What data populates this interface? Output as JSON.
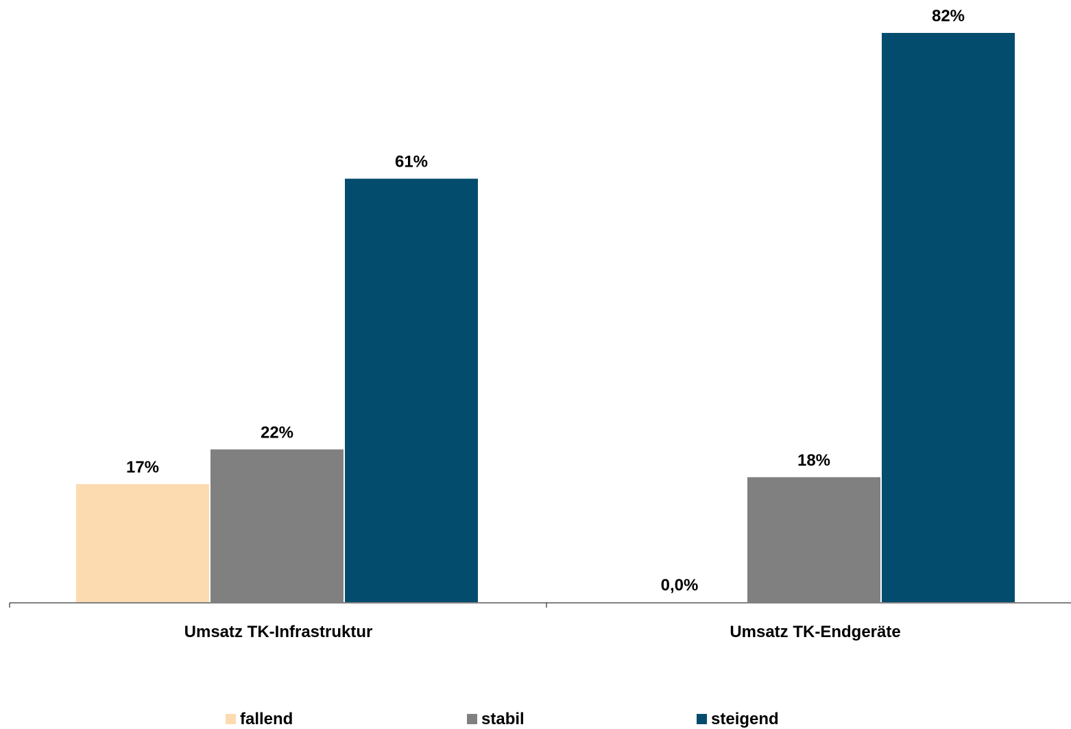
{
  "chart_data": {
    "type": "bar",
    "categories": [
      "Umsatz TK-Infrastruktur",
      "Umsatz TK-Endgeräte"
    ],
    "series": [
      {
        "name": "fallend",
        "color": "#FDDBB0",
        "values": [
          17,
          0
        ],
        "labels": [
          "17%",
          "0,0%"
        ]
      },
      {
        "name": "stabil",
        "color": "#808080",
        "values": [
          22,
          18
        ],
        "labels": [
          "22%",
          "18%"
        ]
      },
      {
        "name": "steigend",
        "color": "#034C6E",
        "values": [
          61,
          82
        ],
        "labels": [
          "61%",
          "82%"
        ]
      }
    ],
    "ylim": [
      0,
      82
    ],
    "grid": false,
    "legend_position": "bottom"
  }
}
